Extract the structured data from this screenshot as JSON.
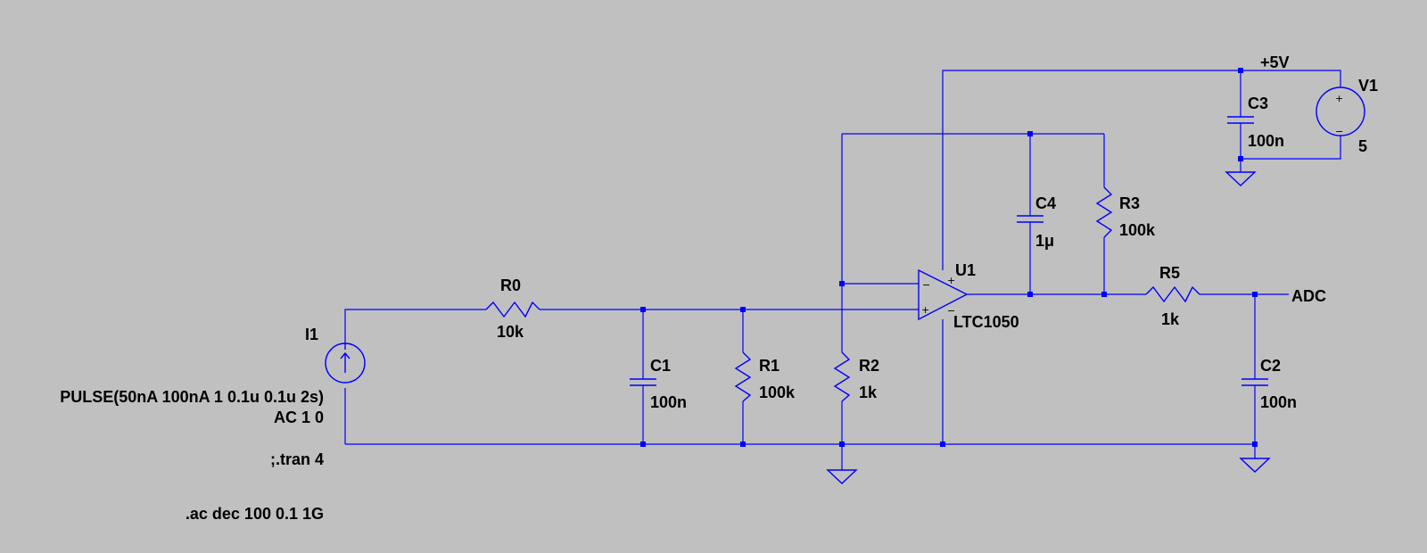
{
  "components": {
    "I1": {
      "name": "I1",
      "value_line1": "PULSE(50nA 100nA 1 0.1u 0.1u 2s)",
      "value_line2": "AC 1 0"
    },
    "R0": {
      "name": "R0",
      "value": "10k"
    },
    "C1": {
      "name": "C1",
      "value": "100n"
    },
    "R1": {
      "name": "R1",
      "value": "100k"
    },
    "R2": {
      "name": "R2",
      "value": "1k"
    },
    "U1": {
      "name": "U1",
      "value": "LTC1050"
    },
    "C4": {
      "name": "C4",
      "value": "1μ"
    },
    "R3": {
      "name": "R3",
      "value": "100k"
    },
    "R5": {
      "name": "R5",
      "value": "1k"
    },
    "C2": {
      "name": "C2",
      "value": "100n"
    },
    "C3": {
      "name": "C3",
      "value": "100n"
    },
    "V1": {
      "name": "V1",
      "value": "5"
    }
  },
  "net_labels": {
    "supply": "+5V",
    "output": "ADC"
  },
  "directives": {
    "tran": ";.tran 4",
    "ac": ".ac dec 100 0.1 1G"
  },
  "colors": {
    "background": "#c0c0c0",
    "wire": "#0000ff",
    "text": "#000000"
  }
}
